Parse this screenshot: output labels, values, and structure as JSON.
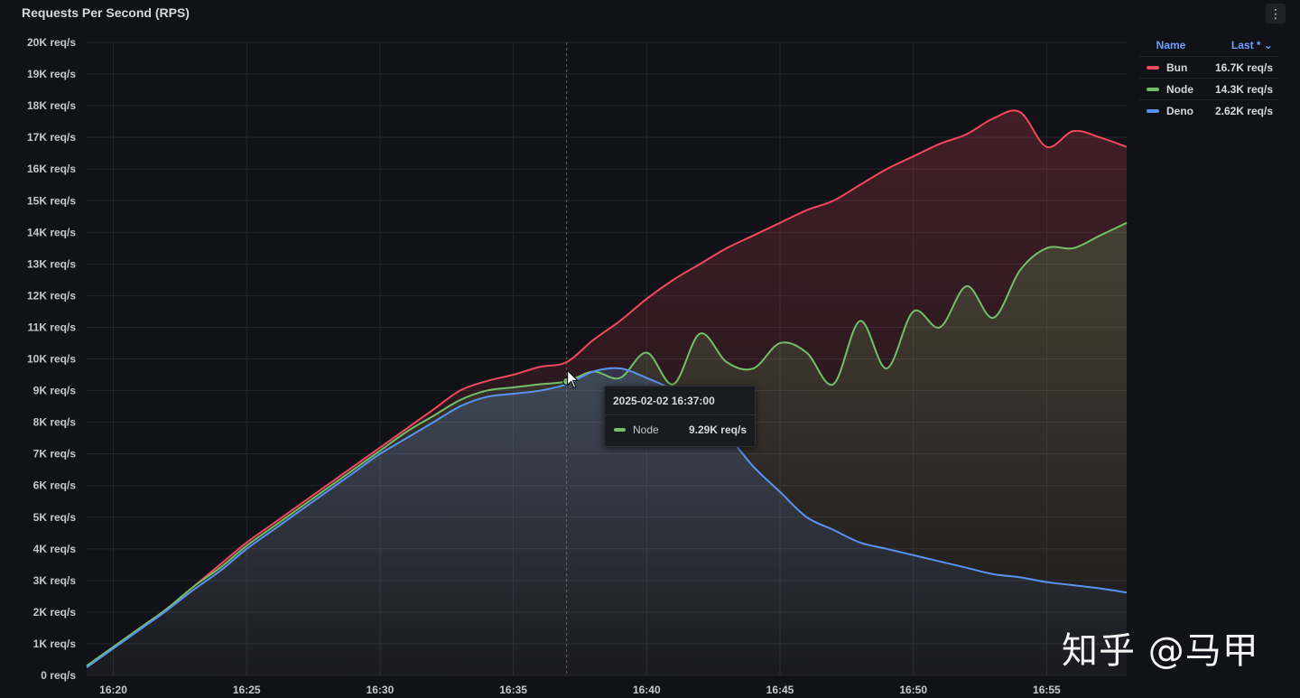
{
  "panel": {
    "title": "Requests Per Second (RPS)",
    "menu_icon": "⋮"
  },
  "legend": {
    "header_name": "Name",
    "header_last": "Last * ⌄",
    "items": [
      {
        "name": "Bun",
        "value": "16.7K req/s",
        "color": "#f2495c"
      },
      {
        "name": "Node",
        "value": "14.3K req/s",
        "color": "#73bf69"
      },
      {
        "name": "Deno",
        "value": "2.62K req/s",
        "color": "#5794f2"
      }
    ]
  },
  "tooltip": {
    "time": "2025-02-02 16:37:00",
    "series": "Node",
    "value": "9.29K req/s",
    "color": "#73bf69"
  },
  "watermark": "知乎 @马甲",
  "chart_data": {
    "type": "area",
    "title": "Requests Per Second (RPS)",
    "xlabel": "",
    "ylabel": "",
    "y_unit": "req/s",
    "xlim": [
      "16:19",
      "16:58"
    ],
    "ylim": [
      0,
      20000
    ],
    "grid": true,
    "legend_position": "right",
    "x_ticks": [
      "16:20",
      "16:25",
      "16:30",
      "16:35",
      "16:40",
      "16:45",
      "16:50",
      "16:55"
    ],
    "y_ticks": [
      "0 req/s",
      "1K req/s",
      "2K req/s",
      "3K req/s",
      "4K req/s",
      "5K req/s",
      "6K req/s",
      "7K req/s",
      "8K req/s",
      "9K req/s",
      "10K req/s",
      "11K req/s",
      "12K req/s",
      "13K req/s",
      "14K req/s",
      "15K req/s",
      "16K req/s",
      "17K req/s",
      "18K req/s",
      "19K req/s",
      "20K req/s"
    ],
    "hover_marker": {
      "time": "16:37",
      "series": "Node",
      "value": 9290
    },
    "series": [
      {
        "name": "Bun",
        "color": "#f2495c",
        "points": [
          [
            "16:19",
            300
          ],
          [
            "16:20",
            900
          ],
          [
            "16:21",
            1500
          ],
          [
            "16:22",
            2100
          ],
          [
            "16:23",
            2800
          ],
          [
            "16:24",
            3500
          ],
          [
            "16:25",
            4200
          ],
          [
            "16:26",
            4800
          ],
          [
            "16:27",
            5400
          ],
          [
            "16:28",
            6000
          ],
          [
            "16:29",
            6600
          ],
          [
            "16:30",
            7200
          ],
          [
            "16:31",
            7800
          ],
          [
            "16:32",
            8400
          ],
          [
            "16:33",
            9000
          ],
          [
            "16:34",
            9300
          ],
          [
            "16:35",
            9500
          ],
          [
            "16:36",
            9750
          ],
          [
            "16:37",
            9900
          ],
          [
            "16:38",
            10600
          ],
          [
            "16:39",
            11200
          ],
          [
            "16:40",
            11900
          ],
          [
            "16:41",
            12500
          ],
          [
            "16:42",
            13000
          ],
          [
            "16:43",
            13500
          ],
          [
            "16:44",
            13900
          ],
          [
            "16:45",
            14300
          ],
          [
            "16:46",
            14700
          ],
          [
            "16:47",
            15000
          ],
          [
            "16:48",
            15500
          ],
          [
            "16:49",
            16000
          ],
          [
            "16:50",
            16400
          ],
          [
            "16:51",
            16800
          ],
          [
            "16:52",
            17100
          ],
          [
            "16:53",
            17600
          ],
          [
            "16:54",
            17800
          ],
          [
            "16:55",
            16700
          ],
          [
            "16:56",
            17200
          ],
          [
            "16:57",
            17000
          ],
          [
            "16:58",
            16700
          ]
        ]
      },
      {
        "name": "Node",
        "color": "#73bf69",
        "points": [
          [
            "16:19",
            300
          ],
          [
            "16:20",
            900
          ],
          [
            "16:21",
            1500
          ],
          [
            "16:22",
            2100
          ],
          [
            "16:23",
            2800
          ],
          [
            "16:24",
            3400
          ],
          [
            "16:25",
            4100
          ],
          [
            "16:26",
            4700
          ],
          [
            "16:27",
            5300
          ],
          [
            "16:28",
            5900
          ],
          [
            "16:29",
            6500
          ],
          [
            "16:30",
            7100
          ],
          [
            "16:31",
            7700
          ],
          [
            "16:32",
            8200
          ],
          [
            "16:33",
            8700
          ],
          [
            "16:34",
            9000
          ],
          [
            "16:35",
            9100
          ],
          [
            "16:36",
            9200
          ],
          [
            "16:37",
            9290
          ],
          [
            "16:38",
            9600
          ],
          [
            "16:39",
            9400
          ],
          [
            "16:40",
            10200
          ],
          [
            "16:41",
            9200
          ],
          [
            "16:42",
            10800
          ],
          [
            "16:43",
            9900
          ],
          [
            "16:44",
            9700
          ],
          [
            "16:45",
            10500
          ],
          [
            "16:46",
            10200
          ],
          [
            "16:47",
            9200
          ],
          [
            "16:48",
            11200
          ],
          [
            "16:49",
            9700
          ],
          [
            "16:50",
            11500
          ],
          [
            "16:51",
            11000
          ],
          [
            "16:52",
            12300
          ],
          [
            "16:53",
            11300
          ],
          [
            "16:54",
            12800
          ],
          [
            "16:55",
            13500
          ],
          [
            "16:56",
            13500
          ],
          [
            "16:57",
            13900
          ],
          [
            "16:58",
            14300
          ]
        ]
      },
      {
        "name": "Deno",
        "color": "#5794f2",
        "points": [
          [
            "16:19",
            250
          ],
          [
            "16:20",
            850
          ],
          [
            "16:21",
            1450
          ],
          [
            "16:22",
            2050
          ],
          [
            "16:23",
            2700
          ],
          [
            "16:24",
            3300
          ],
          [
            "16:25",
            4000
          ],
          [
            "16:26",
            4600
          ],
          [
            "16:27",
            5200
          ],
          [
            "16:28",
            5800
          ],
          [
            "16:29",
            6400
          ],
          [
            "16:30",
            7000
          ],
          [
            "16:31",
            7500
          ],
          [
            "16:32",
            8000
          ],
          [
            "16:33",
            8500
          ],
          [
            "16:34",
            8800
          ],
          [
            "16:35",
            8900
          ],
          [
            "16:36",
            9000
          ],
          [
            "16:37",
            9200
          ],
          [
            "16:38",
            9600
          ],
          [
            "16:39",
            9700
          ],
          [
            "16:40",
            9400
          ],
          [
            "16:41",
            9000
          ],
          [
            "16:42",
            8300
          ],
          [
            "16:43",
            7600
          ],
          [
            "16:44",
            6600
          ],
          [
            "16:45",
            5800
          ],
          [
            "16:46",
            5000
          ],
          [
            "16:47",
            4600
          ],
          [
            "16:48",
            4200
          ],
          [
            "16:49",
            4000
          ],
          [
            "16:50",
            3800
          ],
          [
            "16:51",
            3600
          ],
          [
            "16:52",
            3400
          ],
          [
            "16:53",
            3200
          ],
          [
            "16:54",
            3100
          ],
          [
            "16:55",
            2950
          ],
          [
            "16:56",
            2850
          ],
          [
            "16:57",
            2750
          ],
          [
            "16:58",
            2620
          ]
        ]
      }
    ]
  }
}
